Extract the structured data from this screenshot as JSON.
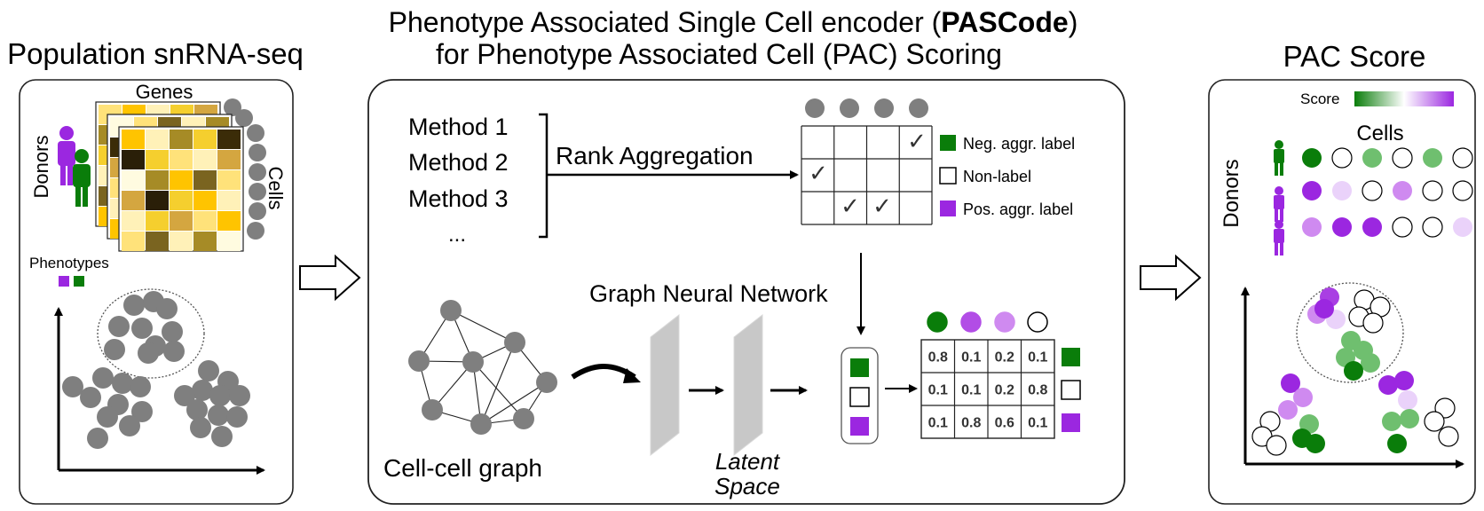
{
  "panel1": {
    "title": "Population snRNA-seq",
    "genes_label": "Genes",
    "donors_label": "Donors",
    "cells_label": "Cells",
    "phenotypes_label": "Phenotypes"
  },
  "panel2": {
    "title_line1_prefix": "Phenotype Associated Single Cell encoder (",
    "title_line1_bold": "PASCode",
    "title_line1_suffix": ")",
    "title_line2": "for Phenotype Associated Cell (PAC) Scoring",
    "methods": [
      "Method 1",
      "Method 2",
      "Method 3",
      "..."
    ],
    "rank_aggregation_label": "Rank Aggregation",
    "legend": {
      "neg": "Neg. aggr. label",
      "non": "Non-label",
      "pos": "Pos. aggr. label"
    },
    "check_symbol": "✓",
    "gnn_label": "Graph Neural Network",
    "cell_graph_label": "Cell-cell graph",
    "latent_label_1": "Latent",
    "latent_label_2": "Space",
    "prob_table": [
      [
        "0.8",
        "0.1",
        "0.2",
        "0.1"
      ],
      [
        "0.1",
        "0.1",
        "0.2",
        "0.8"
      ],
      [
        "0.1",
        "0.8",
        "0.6",
        "0.1"
      ]
    ]
  },
  "panel3": {
    "title": "PAC Score",
    "score_label": "Score",
    "cells_label": "Cells",
    "donors_label": "Donors"
  },
  "colors": {
    "green": "#0a7d0a",
    "purple": "#9b27e0",
    "gray": "#7f7f7f",
    "border": "#222222"
  }
}
